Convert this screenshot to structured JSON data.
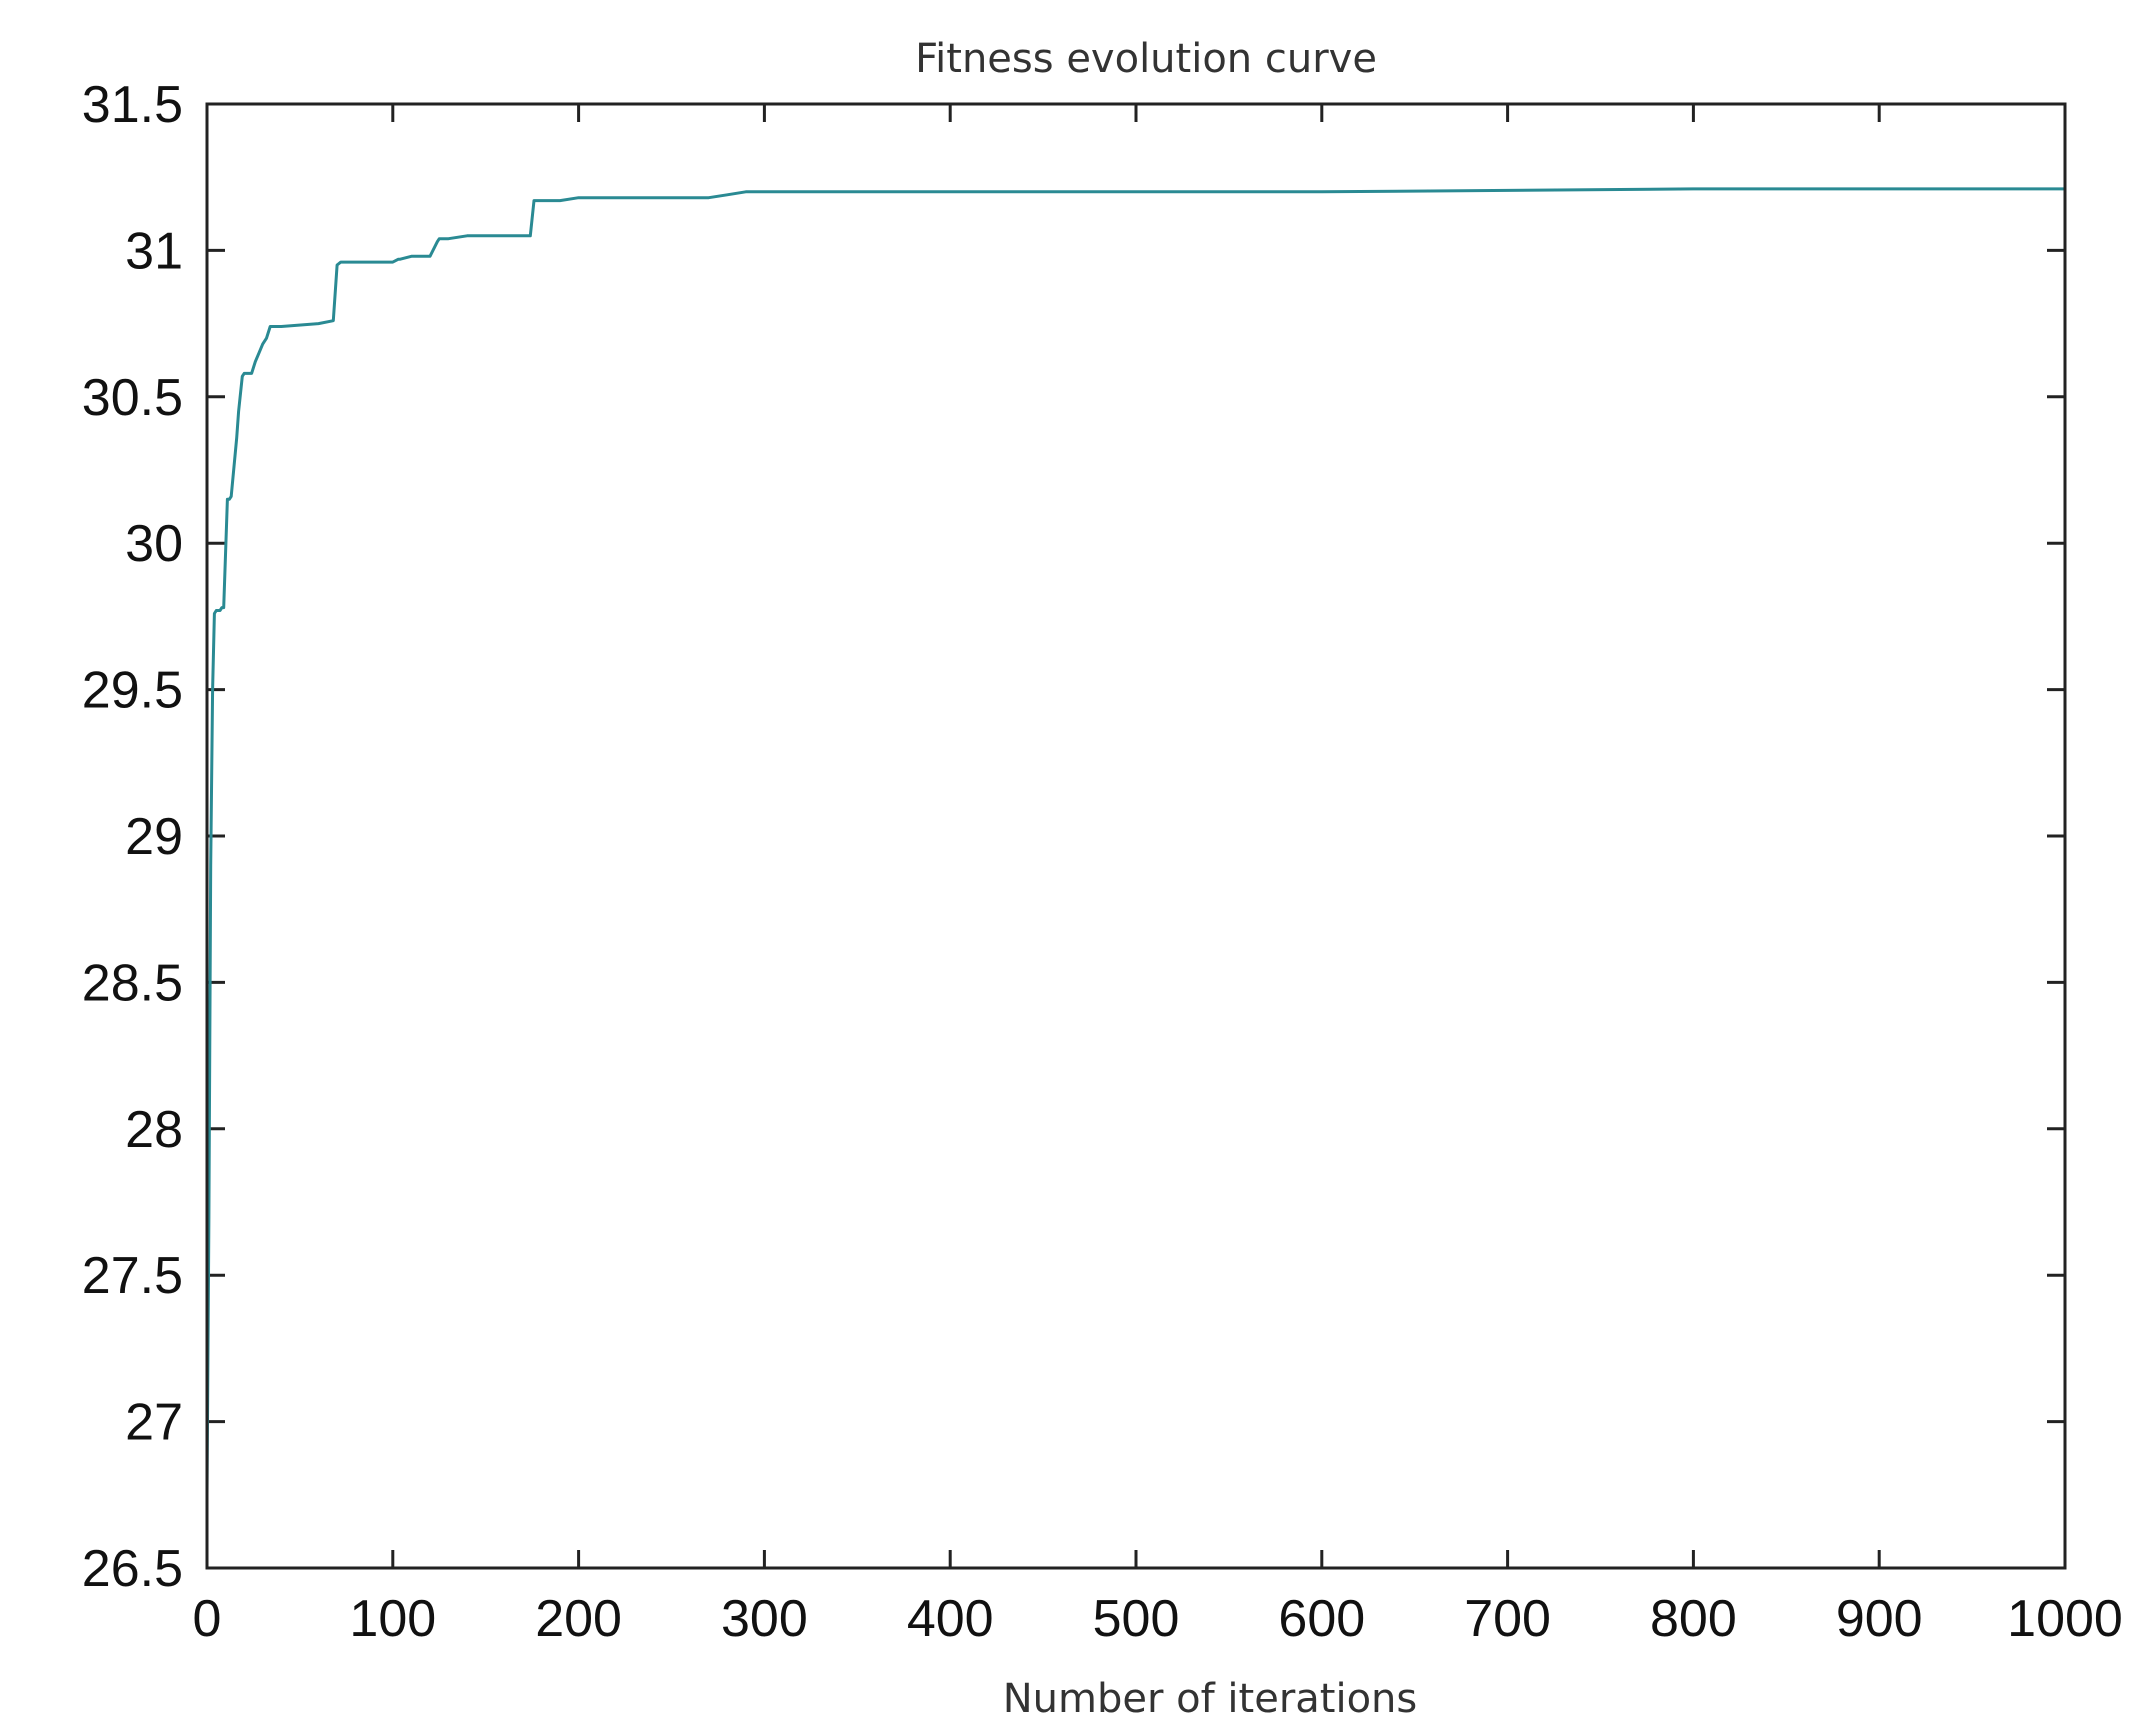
{
  "chart_data": {
    "type": "line",
    "title": "Fitness evolution curve",
    "xlabel": "Number of iterations",
    "ylabel": "",
    "xlim": [
      0,
      1000
    ],
    "ylim": [
      26.5,
      31.5
    ],
    "xticks": [
      0,
      100,
      200,
      300,
      400,
      500,
      600,
      700,
      800,
      900,
      1000
    ],
    "xtick_labels": [
      "0",
      "100",
      "200",
      "300",
      "400",
      "500",
      "600",
      "700",
      "800",
      "900",
      "1000"
    ],
    "yticks": [
      26.5,
      27,
      27.5,
      28,
      28.5,
      29,
      29.5,
      30,
      30.5,
      31,
      31.5
    ],
    "ytick_labels": [
      "26.5",
      "27",
      "27.5",
      "28",
      "28.5",
      "29",
      "29.5",
      "30",
      "30.5",
      "31",
      "31.5"
    ],
    "grid": false,
    "line_color": "#2a8a93",
    "series": [
      {
        "x": [
          0,
          1,
          2,
          3,
          4,
          5,
          7,
          8,
          9,
          11,
          12,
          13,
          16,
          17,
          19,
          20,
          24,
          26,
          28,
          30,
          32,
          34,
          40,
          60,
          68,
          70,
          72,
          80,
          100,
          103,
          104,
          110,
          120,
          124,
          125,
          130,
          140,
          150,
          170,
          174,
          176,
          180,
          190,
          200,
          210,
          250,
          270,
          280,
          290,
          300,
          350,
          400,
          600,
          800,
          1000
        ],
        "y": [
          26.75,
          27.7,
          28.9,
          29.5,
          29.76,
          29.77,
          29.77,
          29.78,
          29.78,
          30.15,
          30.15,
          30.16,
          30.36,
          30.45,
          30.57,
          30.58,
          30.58,
          30.62,
          30.65,
          30.68,
          30.7,
          30.74,
          30.74,
          30.75,
          30.76,
          30.95,
          30.96,
          30.96,
          30.96,
          30.97,
          30.97,
          30.98,
          30.98,
          31.03,
          31.04,
          31.04,
          31.05,
          31.05,
          31.05,
          31.05,
          31.17,
          31.17,
          31.17,
          31.18,
          31.18,
          31.18,
          31.18,
          31.19,
          31.2,
          31.2,
          31.2,
          31.2,
          31.2,
          31.21,
          31.21
        ]
      }
    ]
  }
}
